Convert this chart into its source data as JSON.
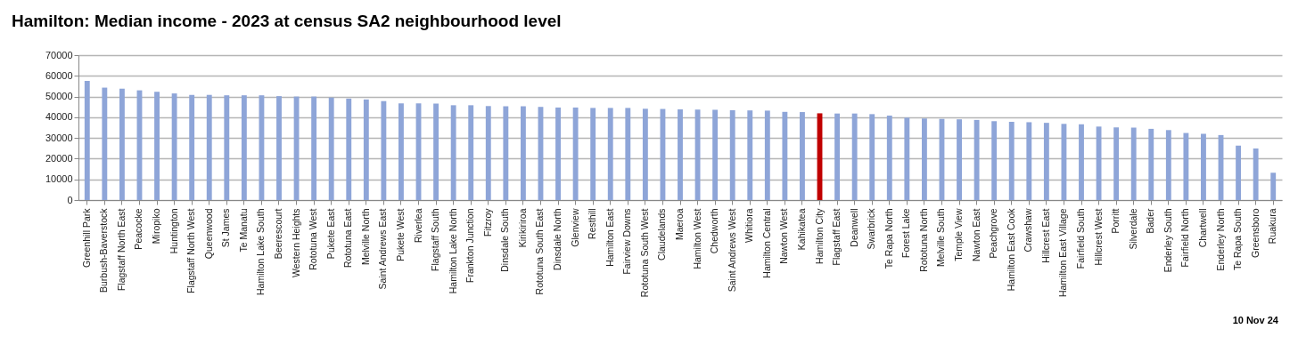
{
  "chart_data": {
    "type": "bar",
    "title": "Hamilton: Median income - 2023 at census SA2 neighbourhood level",
    "categories": [
      "Greenhill Park",
      "Burbush-Baverstock",
      "Flagstaff North East",
      "Peacocke",
      "Miropiko",
      "Huntington",
      "Flagstaff North West",
      "Queenwood",
      "St James",
      "Te Manatu",
      "Hamilton Lake South",
      "Beerescourt",
      "Western Heights",
      "Rototuna West",
      "Pukete East",
      "Rototuna East",
      "Melville North",
      "Saint Andrews East",
      "Pukete West",
      "Riverlea",
      "Flagstaff South",
      "Hamilton Lake North",
      "Frankton Junction",
      "Fitzroy",
      "Dinsdale South",
      "Kirikiriroa",
      "Rototuna South East",
      "Dinsdale North",
      "Glenview",
      "Resthill",
      "Hamilton East",
      "Fairview Downs",
      "Rototuna South West",
      "Claudelands",
      "Maeroa",
      "Hamilton West",
      "Chedworth",
      "Saint Andrews West",
      "Whitiora",
      "Hamilton Central",
      "Nawton West",
      "Kahikatea",
      "Hamilton City",
      "Flagstaff East",
      "Deanwell",
      "Swarbrick",
      "Te Rapa North",
      "Forest Lake",
      "Rototuna North",
      "Melville South",
      "Temple View",
      "Nawton East",
      "Peachgrove",
      "Hamilton East Cook",
      "Crawshaw",
      "Hillcrest East",
      "Hamilton East Village",
      "Fairfield South",
      "Hillcrest West",
      "Porritt",
      "Silverdale",
      "Bader",
      "Enderley South",
      "Fairfield North",
      "Chartwell",
      "Enderley North",
      "Te Rapa South",
      "Greensboro",
      "Ruakura"
    ],
    "values": [
      57500,
      54300,
      53800,
      53000,
      52300,
      51500,
      50800,
      50800,
      50600,
      50600,
      50600,
      50200,
      50000,
      50000,
      49500,
      49000,
      48600,
      47800,
      46700,
      46700,
      46600,
      45800,
      45800,
      45400,
      45300,
      45300,
      45000,
      44700,
      44700,
      44500,
      44500,
      44500,
      44100,
      44000,
      43800,
      43700,
      43600,
      43400,
      43300,
      43200,
      42600,
      42500,
      41900,
      41800,
      41800,
      41500,
      40800,
      39800,
      39400,
      39200,
      39000,
      38700,
      38100,
      37800,
      37600,
      37300,
      36800,
      36600,
      35500,
      35100,
      35000,
      34400,
      33800,
      32400,
      32000,
      31400,
      26300,
      24900,
      13200
    ],
    "colors": [
      "#8ea5d8",
      "#8ea5d8",
      "#8ea5d8",
      "#8ea5d8",
      "#8ea5d8",
      "#8ea5d8",
      "#8ea5d8",
      "#8ea5d8",
      "#8ea5d8",
      "#8ea5d8",
      "#8ea5d8",
      "#8ea5d8",
      "#8ea5d8",
      "#8ea5d8",
      "#8ea5d8",
      "#8ea5d8",
      "#8ea5d8",
      "#8ea5d8",
      "#8ea5d8",
      "#8ea5d8",
      "#8ea5d8",
      "#8ea5d8",
      "#8ea5d8",
      "#8ea5d8",
      "#8ea5d8",
      "#8ea5d8",
      "#8ea5d8",
      "#8ea5d8",
      "#8ea5d8",
      "#8ea5d8",
      "#8ea5d8",
      "#8ea5d8",
      "#8ea5d8",
      "#8ea5d8",
      "#8ea5d8",
      "#8ea5d8",
      "#8ea5d8",
      "#8ea5d8",
      "#8ea5d8",
      "#8ea5d8",
      "#8ea5d8",
      "#8ea5d8",
      "#c00000",
      "#8ea5d8",
      "#8ea5d8",
      "#8ea5d8",
      "#8ea5d8",
      "#8ea5d8",
      "#8ea5d8",
      "#8ea5d8",
      "#8ea5d8",
      "#8ea5d8",
      "#8ea5d8",
      "#8ea5d8",
      "#8ea5d8",
      "#8ea5d8",
      "#8ea5d8",
      "#8ea5d8",
      "#8ea5d8",
      "#8ea5d8",
      "#8ea5d8",
      "#8ea5d8",
      "#8ea5d8",
      "#8ea5d8",
      "#8ea5d8",
      "#8ea5d8",
      "#8ea5d8",
      "#8ea5d8",
      "#8ea5d8"
    ],
    "ylim": [
      0,
      70000
    ],
    "yticks": [
      0,
      10000,
      20000,
      30000,
      40000,
      50000,
      60000,
      70000
    ],
    "grid": "y",
    "annotations": [
      "10 Nov 24"
    ]
  }
}
